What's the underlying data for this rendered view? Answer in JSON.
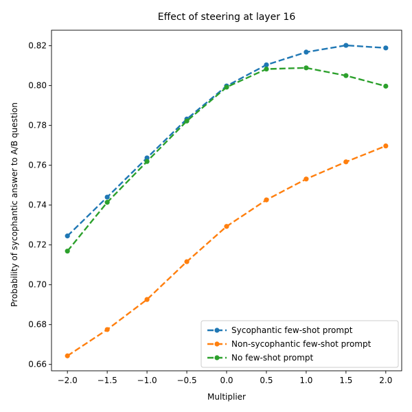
{
  "chart_data": {
    "type": "line",
    "title": "Effect of steering at layer 16",
    "xlabel": "Multiplier",
    "ylabel": "Probability of sycophantic answer to A/B question",
    "x": [
      -2.0,
      -1.5,
      -1.0,
      -0.5,
      0.0,
      0.5,
      1.0,
      1.5,
      2.0
    ],
    "x_tick_labels": [
      "−2.0",
      "−1.5",
      "−1.0",
      "−0.5",
      "0.0",
      "0.5",
      "1.0",
      "1.5",
      "2.0"
    ],
    "y_ticks": [
      0.66,
      0.68,
      0.7,
      0.72,
      0.74,
      0.76,
      0.78,
      0.8,
      0.82
    ],
    "y_tick_labels": [
      "0.66",
      "0.68",
      "0.70",
      "0.72",
      "0.74",
      "0.76",
      "0.78",
      "0.80",
      "0.82"
    ],
    "xlim": [
      -2.2,
      2.2
    ],
    "ylim": [
      0.6568,
      0.8278
    ],
    "grid": false,
    "legend_position": "lower-right",
    "line_style": "dashed",
    "series": [
      {
        "name": "Sycophantic few-shot prompt",
        "color": "#1f77b4",
        "values": [
          0.7245,
          0.744,
          0.7637,
          0.7832,
          0.7998,
          0.8104,
          0.8168,
          0.8202,
          0.8189
        ]
      },
      {
        "name": "Non-sycophantic few-shot prompt",
        "color": "#ff7f0e",
        "values": [
          0.6643,
          0.6775,
          0.6926,
          0.7116,
          0.7293,
          0.7426,
          0.7531,
          0.7617,
          0.7697
        ]
      },
      {
        "name": "No few-shot prompt",
        "color": "#2ca02c",
        "values": [
          0.7169,
          0.7414,
          0.7619,
          0.7822,
          0.7992,
          0.8083,
          0.8089,
          0.805,
          0.7997
        ]
      }
    ]
  }
}
